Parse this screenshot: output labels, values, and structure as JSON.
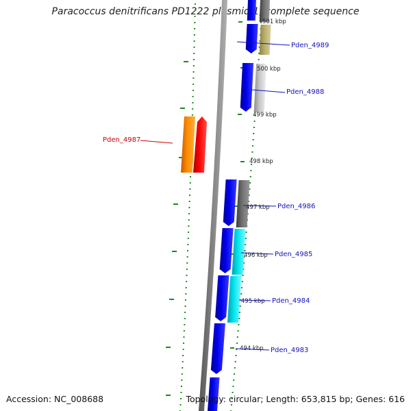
{
  "title": "Paracoccus denitrificans PD1222 plasmid 1, complete sequence",
  "accession_text": "Accession: NC_008688",
  "summary_text": "Topology: circular; Length: 653,815 bp; Genes: 616",
  "colors": {
    "backbone": "#808080",
    "cds_forward": "#0000ee",
    "gc_dots": "#1a8a1a",
    "label_blue": "#1010c0",
    "label_red": "#cc0000",
    "cog_olive": "#b8ad6a",
    "cog_silver": "#c8c8c8",
    "cog_gray": "#707070",
    "cog_cyan": "#00e5ee",
    "cog_orange": "#ff8c00",
    "cog_red": "#ff0000"
  },
  "ticks": [
    "501 kbp",
    "500 kbp",
    "499 kbp",
    "498 kbp",
    "497 kbp",
    "496 kbp",
    "495 kbp",
    "494 kbp"
  ],
  "genes": [
    {
      "label": "Pden_4989",
      "color": "blue",
      "cog": "olive"
    },
    {
      "label": "Pden_4988",
      "color": "blue",
      "cog": "silver"
    },
    {
      "label": "Pden_4987",
      "color": "red",
      "cog": "orange"
    },
    {
      "label": "Pden_4986",
      "color": "blue",
      "cog": "gray"
    },
    {
      "label": "Pden_4985",
      "color": "blue",
      "cog": "cyan"
    },
    {
      "label": "Pden_4984",
      "color": "blue",
      "cog": "cyan"
    },
    {
      "label": "Pden_4983",
      "color": "blue",
      "cog": "none"
    }
  ]
}
